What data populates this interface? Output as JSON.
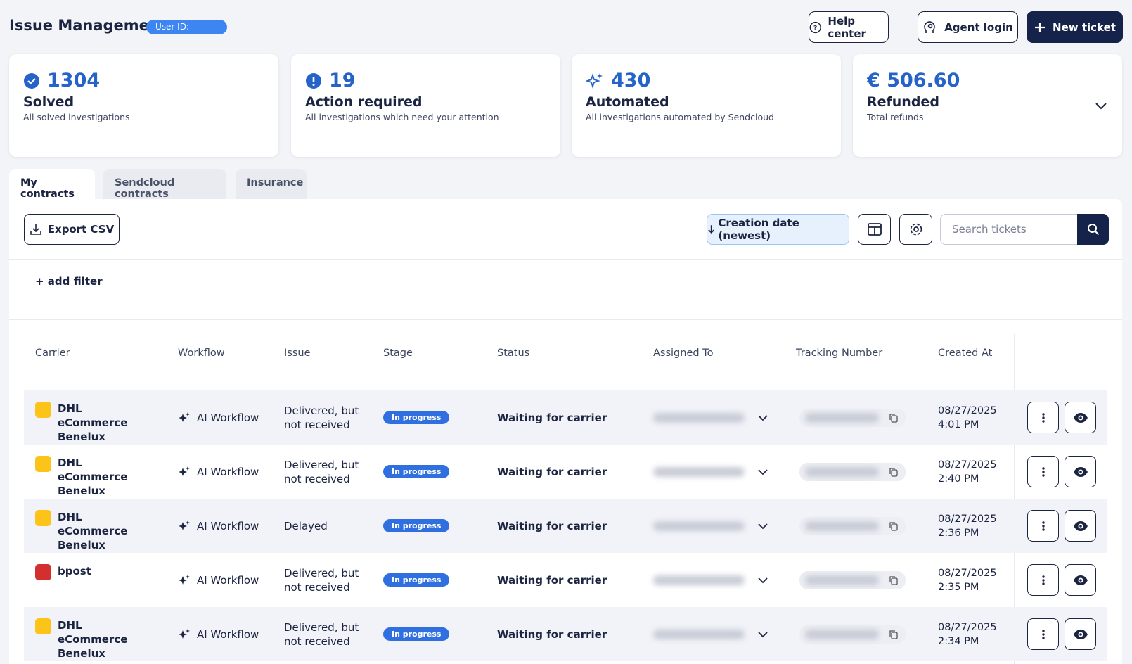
{
  "header": {
    "title": "Issue Management",
    "user_id_label": "User ID:",
    "buttons": [
      "Help center",
      "Agent login",
      "New ticket"
    ]
  },
  "stats": [
    {
      "value": 1304,
      "label": "Solved",
      "description": "All solved investigations"
    },
    {
      "value": 19,
      "label": "Action required",
      "description": "All investigations which need your attention"
    },
    {
      "value": 430,
      "label": "Automated",
      "description": "All investigations automated by Sendcloud"
    },
    {
      "value": "€ 506.60",
      "label": "Refunded",
      "description": "Total refunds"
    }
  ],
  "tabs": [
    "My contracts",
    "Sendcloud contracts",
    "Insurance"
  ],
  "toolbar": {
    "export": "Export CSV",
    "sort": "Creation date (newest)",
    "search_placeholder": "Search tickets",
    "add_filter": "+ add filter"
  },
  "table": {
    "columns": [
      "Carrier",
      "Workflow",
      "Issue",
      "Stage",
      "Status",
      "Assigned To",
      "Tracking Number",
      "Created At"
    ],
    "rows": [
      {
        "carrier": "DHL eCommerce Benelux",
        "workflow": "AI Workflow",
        "issue": "Delivered, but not received",
        "stage": "In progress",
        "status": "Waiting for carrier",
        "created_date": "08/27/2025",
        "created_time": "4:01 PM"
      },
      {
        "carrier": "DHL eCommerce Benelux",
        "workflow": "AI Workflow",
        "issue": "Delivered, but not received",
        "stage": "In progress",
        "status": "Waiting for carrier",
        "created_date": "08/27/2025",
        "created_time": "2:40 PM"
      },
      {
        "carrier": "DHL eCommerce Benelux",
        "workflow": "AI Workflow",
        "issue": "Delayed",
        "stage": "In progress",
        "status": "Waiting for carrier",
        "created_date": "08/27/2025",
        "created_time": "2:36 PM"
      },
      {
        "carrier": "bpost",
        "workflow": "AI Workflow",
        "issue": "Delivered, but not received",
        "stage": "In progress",
        "status": "Waiting for carrier",
        "created_date": "08/27/2025",
        "created_time": "2:35 PM"
      },
      {
        "carrier": "DHL eCommerce Benelux",
        "workflow": "AI Workflow",
        "issue": "Delivered, but not received",
        "stage": "In progress",
        "status": "Waiting for carrier",
        "created_date": "08/27/2025",
        "created_time": "2:34 PM"
      }
    ]
  }
}
